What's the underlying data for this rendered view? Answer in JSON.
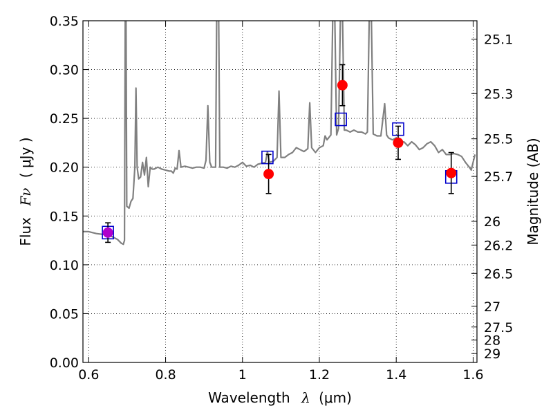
{
  "chart_data": {
    "type": "scatter",
    "title": "",
    "xlabel_text": "Wavelength",
    "xlabel_symbol": "λ",
    "xlabel_unit": "(μm)",
    "ylabel_text": "Flux",
    "ylabel_symbol": "Fν",
    "ylabel_unit": "( μJy )",
    "y2label": "Magnitude (AB)",
    "xlim": [
      0.585,
      1.61
    ],
    "ylim": [
      0.0,
      0.35
    ],
    "grid": true,
    "x_ticks": [
      0.6,
      0.8,
      1.0,
      1.2,
      1.4,
      1.6
    ],
    "x_tick_labels": [
      "0.6",
      "0.8",
      "1",
      "1.2",
      "1.4",
      "1.6"
    ],
    "y_ticks": [
      0.0,
      0.05,
      0.1,
      0.15,
      0.2,
      0.25,
      0.3,
      0.35
    ],
    "y_tick_labels": [
      "0.00",
      "0.05",
      "0.10",
      "0.15",
      "0.20",
      "0.25",
      "0.30",
      "0.35"
    ],
    "mag_ticks": [
      {
        "label": "25.1",
        "mag": 25.1
      },
      {
        "label": "25.3",
        "mag": 25.3
      },
      {
        "label": "25.5",
        "mag": 25.5
      },
      {
        "label": "25.7",
        "mag": 25.7
      },
      {
        "label": "26",
        "mag": 26.0
      },
      {
        "label": "26.2",
        "mag": 26.2
      },
      {
        "label": "26.5",
        "mag": 26.5
      },
      {
        "label": "27",
        "mag": 27.0
      },
      {
        "label": "27.5",
        "mag": 27.5
      },
      {
        "label": "28",
        "mag": 28.0
      },
      {
        "label": "29",
        "mag": 29.0
      }
    ],
    "spectrum": {
      "color": "#808080",
      "points": [
        [
          0.585,
          0.134
        ],
        [
          0.6,
          0.134
        ],
        [
          0.62,
          0.132
        ],
        [
          0.64,
          0.131
        ],
        [
          0.66,
          0.129
        ],
        [
          0.675,
          0.126
        ],
        [
          0.685,
          0.122
        ],
        [
          0.69,
          0.121
        ],
        [
          0.693,
          0.125
        ],
        [
          0.695,
          0.36
        ],
        [
          0.697,
          0.36
        ],
        [
          0.699,
          0.16
        ],
        [
          0.705,
          0.158
        ],
        [
          0.71,
          0.165
        ],
        [
          0.715,
          0.168
        ],
        [
          0.72,
          0.2
        ],
        [
          0.723,
          0.281
        ],
        [
          0.726,
          0.2
        ],
        [
          0.73,
          0.188
        ],
        [
          0.735,
          0.19
        ],
        [
          0.74,
          0.205
        ],
        [
          0.745,
          0.192
        ],
        [
          0.75,
          0.21
        ],
        [
          0.755,
          0.18
        ],
        [
          0.76,
          0.2
        ],
        [
          0.765,
          0.198
        ],
        [
          0.77,
          0.198
        ],
        [
          0.78,
          0.2
        ],
        [
          0.79,
          0.198
        ],
        [
          0.8,
          0.197
        ],
        [
          0.81,
          0.196
        ],
        [
          0.815,
          0.196
        ],
        [
          0.82,
          0.194
        ],
        [
          0.825,
          0.199
        ],
        [
          0.83,
          0.198
        ],
        [
          0.835,
          0.217
        ],
        [
          0.84,
          0.2
        ],
        [
          0.85,
          0.201
        ],
        [
          0.86,
          0.2
        ],
        [
          0.87,
          0.199
        ],
        [
          0.88,
          0.2
        ],
        [
          0.89,
          0.2
        ],
        [
          0.9,
          0.199
        ],
        [
          0.905,
          0.207
        ],
        [
          0.91,
          0.263
        ],
        [
          0.915,
          0.205
        ],
        [
          0.92,
          0.2
        ],
        [
          0.925,
          0.2
        ],
        [
          0.93,
          0.2
        ],
        [
          0.933,
          0.36
        ],
        [
          0.938,
          0.36
        ],
        [
          0.941,
          0.2
        ],
        [
          0.95,
          0.2
        ],
        [
          0.96,
          0.199
        ],
        [
          0.97,
          0.201
        ],
        [
          0.98,
          0.2
        ],
        [
          0.99,
          0.202
        ],
        [
          1.0,
          0.205
        ],
        [
          1.01,
          0.201
        ],
        [
          1.02,
          0.202
        ],
        [
          1.03,
          0.2
        ],
        [
          1.04,
          0.203
        ],
        [
          1.05,
          0.204
        ],
        [
          1.06,
          0.205
        ],
        [
          1.065,
          0.216
        ],
        [
          1.07,
          0.205
        ],
        [
          1.08,
          0.206
        ],
        [
          1.09,
          0.21
        ],
        [
          1.095,
          0.278
        ],
        [
          1.1,
          0.21
        ],
        [
          1.11,
          0.21
        ],
        [
          1.12,
          0.213
        ],
        [
          1.13,
          0.215
        ],
        [
          1.14,
          0.22
        ],
        [
          1.15,
          0.218
        ],
        [
          1.16,
          0.216
        ],
        [
          1.17,
          0.219
        ],
        [
          1.175,
          0.266
        ],
        [
          1.18,
          0.22
        ],
        [
          1.19,
          0.215
        ],
        [
          1.2,
          0.22
        ],
        [
          1.21,
          0.222
        ],
        [
          1.215,
          0.232
        ],
        [
          1.22,
          0.228
        ],
        [
          1.23,
          0.233
        ],
        [
          1.235,
          0.36
        ],
        [
          1.24,
          0.36
        ],
        [
          1.245,
          0.233
        ],
        [
          1.25,
          0.24
        ],
        [
          1.255,
          0.36
        ],
        [
          1.26,
          0.36
        ],
        [
          1.265,
          0.238
        ],
        [
          1.27,
          0.238
        ],
        [
          1.28,
          0.236
        ],
        [
          1.29,
          0.238
        ],
        [
          1.3,
          0.236
        ],
        [
          1.31,
          0.236
        ],
        [
          1.32,
          0.234
        ],
        [
          1.325,
          0.236
        ],
        [
          1.33,
          0.36
        ],
        [
          1.335,
          0.36
        ],
        [
          1.34,
          0.234
        ],
        [
          1.35,
          0.232
        ],
        [
          1.36,
          0.232
        ],
        [
          1.37,
          0.265
        ],
        [
          1.375,
          0.233
        ],
        [
          1.38,
          0.23
        ],
        [
          1.39,
          0.228
        ],
        [
          1.4,
          0.23
        ],
        [
          1.41,
          0.225
        ],
        [
          1.42,
          0.226
        ],
        [
          1.43,
          0.222
        ],
        [
          1.44,
          0.226
        ],
        [
          1.45,
          0.223
        ],
        [
          1.46,
          0.218
        ],
        [
          1.47,
          0.22
        ],
        [
          1.48,
          0.224
        ],
        [
          1.49,
          0.226
        ],
        [
          1.5,
          0.222
        ],
        [
          1.51,
          0.215
        ],
        [
          1.52,
          0.218
        ],
        [
          1.53,
          0.213
        ],
        [
          1.54,
          0.213
        ],
        [
          1.55,
          0.214
        ],
        [
          1.56,
          0.213
        ],
        [
          1.57,
          0.211
        ],
        [
          1.58,
          0.205
        ],
        [
          1.59,
          0.2
        ],
        [
          1.595,
          0.197
        ],
        [
          1.6,
          0.205
        ],
        [
          1.605,
          0.213
        ]
      ]
    },
    "observed": {
      "color": "#ff0000",
      "points": [
        {
          "x": 0.65,
          "y": 0.133,
          "err": 0.01
        },
        {
          "x": 1.068,
          "y": 0.193,
          "err": 0.02
        },
        {
          "x": 1.26,
          "y": 0.284,
          "err": 0.021
        },
        {
          "x": 1.405,
          "y": 0.225,
          "err": 0.017
        },
        {
          "x": 1.543,
          "y": 0.194,
          "err": 0.021
        }
      ]
    },
    "model": {
      "color": "#0000cc",
      "points": [
        {
          "x": 0.65,
          "y": 0.133
        },
        {
          "x": 1.065,
          "y": 0.21
        },
        {
          "x": 1.256,
          "y": 0.249
        },
        {
          "x": 1.405,
          "y": 0.239
        },
        {
          "x": 1.543,
          "y": 0.19
        }
      ]
    },
    "overlap_marker_color": "#b000cc"
  }
}
